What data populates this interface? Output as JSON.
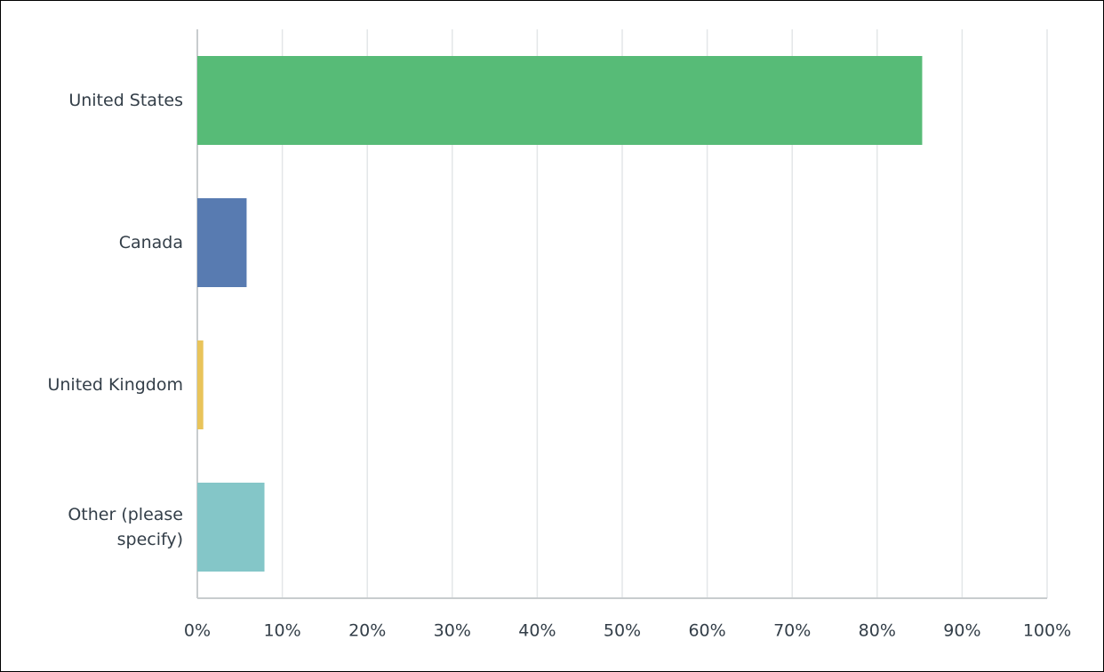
{
  "chart_data": {
    "type": "bar",
    "orientation": "horizontal",
    "categories": [
      "United States",
      "Canada",
      "United Kingdom",
      "Other (please specify)"
    ],
    "values": [
      85.3,
      5.8,
      0.7,
      7.9
    ],
    "colors": [
      "#57bb77",
      "#587bb1",
      "#e9c45a",
      "#84c6c8"
    ],
    "xlim": [
      0,
      100
    ],
    "xticks": [
      {
        "value": 0,
        "label": "0%"
      },
      {
        "value": 10,
        "label": "10%"
      },
      {
        "value": 20,
        "label": "20%"
      },
      {
        "value": 30,
        "label": "30%"
      },
      {
        "value": 40,
        "label": "40%"
      },
      {
        "value": 50,
        "label": "50%"
      },
      {
        "value": 60,
        "label": "60%"
      },
      {
        "value": 70,
        "label": "70%"
      },
      {
        "value": 80,
        "label": "80%"
      },
      {
        "value": 90,
        "label": "90%"
      },
      {
        "value": 100,
        "label": "100%"
      }
    ],
    "grid": true
  }
}
